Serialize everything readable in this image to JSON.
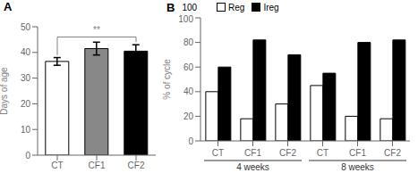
{
  "chart_data": [
    {
      "type": "bar",
      "title": "A",
      "categories": [
        "CT",
        "CF1",
        "CF2"
      ],
      "values": [
        36.5,
        41.5,
        40.5
      ],
      "errors": [
        1.5,
        2.5,
        2.5
      ],
      "colors": [
        "white",
        "#888888",
        "black"
      ],
      "ylabel": "Days of age",
      "ylim": [
        0,
        50
      ],
      "yticks": [
        0,
        10,
        20,
        30,
        40,
        50
      ],
      "annotations": [
        {
          "text": "**",
          "between": [
            "CT",
            "CF2"
          ]
        }
      ]
    },
    {
      "type": "bar",
      "title": "B",
      "groups": [
        {
          "label": "4 weeks",
          "categories": [
            "CT",
            "CF1",
            "CF2"
          ]
        },
        {
          "label": "8 weeks",
          "categories": [
            "CT",
            "CF1",
            "CF2"
          ]
        }
      ],
      "series": [
        {
          "name": "Reg",
          "color": "white",
          "values": [
            40,
            18,
            30,
            45,
            20,
            18
          ]
        },
        {
          "name": "Ireg",
          "color": "black",
          "values": [
            60,
            82,
            70,
            55,
            80,
            82
          ]
        }
      ],
      "ylabel": "% of cycle",
      "ylim": [
        0,
        100
      ],
      "yticks": [
        0,
        20,
        40,
        60,
        80,
        100
      ],
      "legend": "upper left",
      "annotations": [
        "100"
      ]
    }
  ]
}
